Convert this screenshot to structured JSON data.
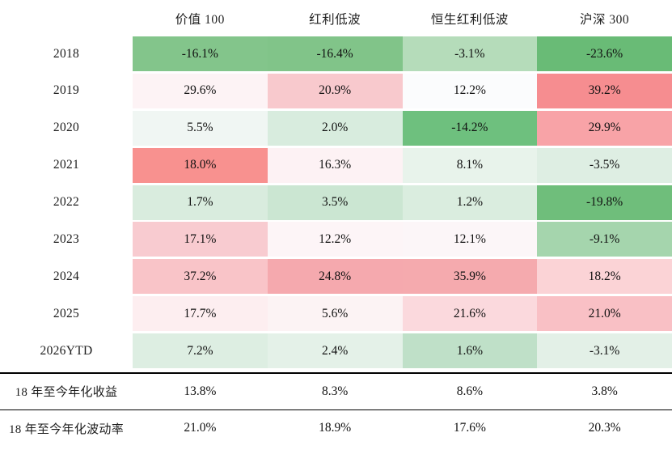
{
  "table": {
    "headers": [
      "价值 100",
      "红利低波",
      "恒生红利低波",
      "沪深 300"
    ],
    "rows": [
      {
        "label": "2018",
        "cells": [
          {
            "text": "-16.1%",
            "bg": "#83C58B"
          },
          {
            "text": "-16.4%",
            "bg": "#81C489"
          },
          {
            "text": "-3.1%",
            "bg": "#B5DCBA"
          },
          {
            "text": "-23.6%",
            "bg": "#69BB76"
          }
        ]
      },
      {
        "label": "2019",
        "cells": [
          {
            "text": "29.6%",
            "bg": "#FDF3F5"
          },
          {
            "text": "20.9%",
            "bg": "#F8C9CD"
          },
          {
            "text": "12.2%",
            "bg": "#FBFCFD"
          },
          {
            "text": "39.2%",
            "bg": "#F68D90"
          }
        ]
      },
      {
        "label": "2020",
        "cells": [
          {
            "text": "5.5%",
            "bg": "#F0F6F3"
          },
          {
            "text": "2.0%",
            "bg": "#D8ECDE"
          },
          {
            "text": "-14.2%",
            "bg": "#6EC07E"
          },
          {
            "text": "29.9%",
            "bg": "#F8A3A7"
          }
        ]
      },
      {
        "label": "2021",
        "cells": [
          {
            "text": "18.0%",
            "bg": "#F8918F"
          },
          {
            "text": "16.3%",
            "bg": "#FDF2F4"
          },
          {
            "text": "8.1%",
            "bg": "#E8F3EB"
          },
          {
            "text": "-3.5%",
            "bg": "#DEEEE3"
          }
        ]
      },
      {
        "label": "2022",
        "cells": [
          {
            "text": "1.7%",
            "bg": "#D9ECDE"
          },
          {
            "text": "3.5%",
            "bg": "#CBE6D2"
          },
          {
            "text": "1.2%",
            "bg": "#DAEDDF"
          },
          {
            "text": "-19.8%",
            "bg": "#6FBE7B"
          }
        ]
      },
      {
        "label": "2023",
        "cells": [
          {
            "text": "17.1%",
            "bg": "#F8CBD0"
          },
          {
            "text": "12.2%",
            "bg": "#FDF5F7"
          },
          {
            "text": "12.1%",
            "bg": "#FCF6F8"
          },
          {
            "text": "-9.1%",
            "bg": "#A5D5AD"
          }
        ]
      },
      {
        "label": "2024",
        "cells": [
          {
            "text": "37.2%",
            "bg": "#F9C4C8"
          },
          {
            "text": "24.8%",
            "bg": "#F5A9AE"
          },
          {
            "text": "35.9%",
            "bg": "#F5AAAE"
          },
          {
            "text": "18.2%",
            "bg": "#FBD3D6"
          }
        ]
      },
      {
        "label": "2025",
        "cells": [
          {
            "text": "17.7%",
            "bg": "#FDEEF0"
          },
          {
            "text": "5.6%",
            "bg": "#FCF3F4"
          },
          {
            "text": "21.6%",
            "bg": "#FBD9DD"
          },
          {
            "text": "21.0%",
            "bg": "#F9C0C5"
          }
        ]
      },
      {
        "label": "2026YTD",
        "cells": [
          {
            "text": "7.2%",
            "bg": "#DDEEE2"
          },
          {
            "text": "2.4%",
            "bg": "#E4F1E8"
          },
          {
            "text": "1.6%",
            "bg": "#BFE0C8"
          },
          {
            "text": "-3.1%",
            "bg": "#E3F0E7"
          }
        ]
      }
    ],
    "summary_rows": [
      {
        "label": "18 年至今年化收益",
        "cells": [
          "13.8%",
          "8.3%",
          "8.6%",
          "3.8%"
        ]
      },
      {
        "label": "18 年至今年化波动率",
        "cells": [
          "21.0%",
          "18.9%",
          "17.6%",
          "20.3%"
        ]
      }
    ]
  },
  "colors": {
    "background": "#FFFFFF",
    "rule": "#000000",
    "text": "#161616",
    "negative_strong": "#69BB76",
    "positive_strong": "#F68D90"
  },
  "chart_data": {
    "type": "heatmap",
    "title": "",
    "columns": [
      "价值100",
      "红利低波",
      "恒生红利低波",
      "沪深300"
    ],
    "rows": [
      "2018",
      "2019",
      "2020",
      "2021",
      "2022",
      "2023",
      "2024",
      "2025",
      "2026YTD"
    ],
    "unit": "%",
    "values": [
      [
        -16.1,
        -16.4,
        -3.1,
        -23.6
      ],
      [
        29.6,
        20.9,
        12.2,
        39.2
      ],
      [
        5.5,
        2.0,
        -14.2,
        29.9
      ],
      [
        18.0,
        16.3,
        8.1,
        -3.5
      ],
      [
        1.7,
        3.5,
        1.2,
        -19.8
      ],
      [
        17.1,
        12.2,
        12.1,
        -9.1
      ],
      [
        37.2,
        24.8,
        35.9,
        18.2
      ],
      [
        17.7,
        5.6,
        21.6,
        21.0
      ],
      [
        7.2,
        2.4,
        1.6,
        -3.1
      ]
    ],
    "summary": [
      {
        "label": "18年至今年化收益",
        "values": [
          13.8,
          8.3,
          8.6,
          3.8
        ]
      },
      {
        "label": "18年至今年化波动率",
        "values": [
          21.0,
          18.9,
          17.6,
          20.3
        ]
      }
    ],
    "layout_hints": {
      "color_scheme": "green for losses / red-pink for gains, intensity by magnitude",
      "legend": "none",
      "grid": "off",
      "summary_separators": "black horizontal rules above and between summary rows"
    }
  }
}
